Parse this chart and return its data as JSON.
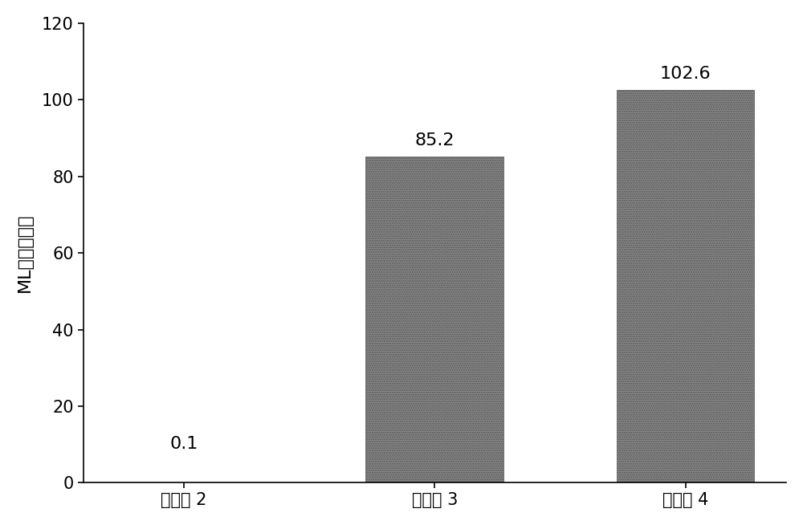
{
  "categories": [
    "比较例 2",
    "实施例 3",
    "实施例 4"
  ],
  "values": [
    0.1,
    85.2,
    102.6
  ],
  "bar_color": "#888888",
  "ylabel": "ML维持率／％",
  "ylim": [
    0,
    120
  ],
  "yticks": [
    0,
    20,
    40,
    60,
    80,
    100,
    120
  ],
  "value_labels": [
    "0.1",
    "85.2",
    "102.6"
  ],
  "value_label_offsets": [
    8,
    2,
    2
  ],
  "background_color": "#ffffff",
  "bar_edge_color": "#555555",
  "label_fontsize": 16,
  "tick_fontsize": 15,
  "value_fontsize": 16
}
